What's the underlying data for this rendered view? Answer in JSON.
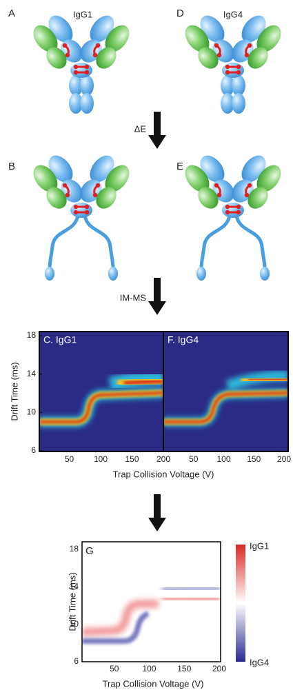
{
  "panels": [
    {
      "letter": "A",
      "title": "IgG1"
    },
    {
      "letter": "D",
      "title": "IgG4"
    },
    {
      "letter": "B"
    },
    {
      "letter": "E"
    }
  ],
  "arrows": [
    "ΔE",
    "IM-MS"
  ],
  "heatmap": {
    "panel_titles": [
      "C. IgG1",
      "F. IgG4"
    ],
    "y_label": "Drift Time (ms)",
    "x_label": "Trap Collision Voltage (V)",
    "yticks": [
      18,
      14,
      10,
      6
    ],
    "xticks_left": [
      50,
      100,
      150,
      200
    ],
    "xticks_right": [
      50,
      100,
      150,
      200
    ]
  },
  "difference": {
    "letter": "G",
    "y_label": "Drift Time (ms)",
    "x_label": "Trap Collision Voltage (V)",
    "yticks": [
      18,
      14,
      10,
      6
    ],
    "xticks": [
      50,
      100,
      150,
      200
    ],
    "colorbar_labels": [
      "IgG1",
      "IgG4"
    ]
  }
}
